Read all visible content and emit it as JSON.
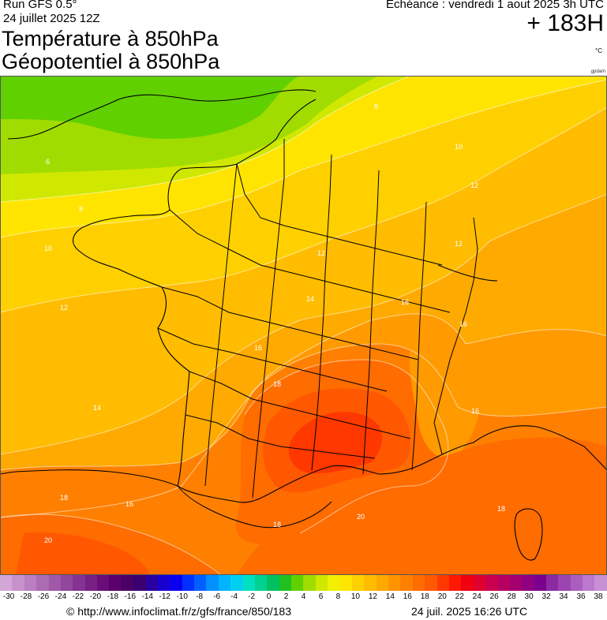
{
  "header": {
    "run": "Run GFS 0.5°",
    "run_date": "24 juillet 2025 12Z",
    "title_line1": "Température à 850hPa",
    "title_line2": "Géopotentiel à 850hPa",
    "valid": "Echéance : vendredi 1 aout 2025 3h UTC",
    "lead": "+ 183H",
    "unit": "°C",
    "credit_small": "gpdam"
  },
  "map": {
    "isotherm_labels": [
      {
        "id": "lbl-8-north",
        "text": "8"
      },
      {
        "id": "lbl-10-ne",
        "text": "10"
      },
      {
        "id": "lbl-12-ne",
        "text": "12"
      },
      {
        "id": "lbl-6-west",
        "text": "6"
      },
      {
        "id": "lbl-8-west",
        "text": "8"
      },
      {
        "id": "lbl-10-west",
        "text": "10"
      },
      {
        "id": "lbl-12-center",
        "text": "12"
      },
      {
        "id": "lbl-12-east",
        "text": "12"
      },
      {
        "id": "lbl-12-atlantic",
        "text": "12"
      },
      {
        "id": "lbl-14-center",
        "text": "14"
      },
      {
        "id": "lbl-16-east",
        "text": "16"
      },
      {
        "id": "lbl-16-alps",
        "text": "16"
      },
      {
        "id": "lbl-16-center",
        "text": "16"
      },
      {
        "id": "lbl-18-center",
        "text": "18"
      },
      {
        "id": "lbl-14-atlantic",
        "text": "14"
      },
      {
        "id": "lbl-16-alps-south",
        "text": "16"
      },
      {
        "id": "lbl-18-spain",
        "text": "18"
      },
      {
        "id": "lbl-16-pyrenees",
        "text": "16"
      },
      {
        "id": "lbl-18-south",
        "text": "18"
      },
      {
        "id": "lbl-20-med",
        "text": "20"
      },
      {
        "id": "lbl-18-corsica",
        "text": "18"
      },
      {
        "id": "lbl-20-spain",
        "text": "20"
      }
    ]
  },
  "colorbar": {
    "colors": [
      "#d4a6d8",
      "#c792cc",
      "#b97fc0",
      "#ac6cb4",
      "#9f59a8",
      "#92469c",
      "#853390",
      "#782084",
      "#6a0d78",
      "#5a006e",
      "#4a0066",
      "#3a0070",
      "#2a00a0",
      "#1a00d0",
      "#0a00f0",
      "#0030ff",
      "#0060ff",
      "#0090ff",
      "#00b4ff",
      "#00d0f0",
      "#00e0c0",
      "#00d090",
      "#00c060",
      "#20c020",
      "#60d000",
      "#a0dc00",
      "#d0e800",
      "#f0f000",
      "#ffe400",
      "#ffd000",
      "#ffbc00",
      "#ffa800",
      "#ff9400",
      "#ff8000",
      "#ff6c00",
      "#ff5800",
      "#ff3800",
      "#ff1800",
      "#f00010",
      "#e00030",
      "#cc0050",
      "#b80060",
      "#a40070",
      "#900080",
      "#7c0090",
      "#8c2aa0",
      "#9c44b0",
      "#ac5ec0",
      "#bc78cc",
      "#c890d4"
    ],
    "ticks": [
      "-30",
      "-28",
      "-26",
      "-24",
      "-22",
      "-20",
      "-18",
      "-16",
      "-14",
      "-12",
      "-10",
      "-8",
      "-6",
      "-4",
      "-2",
      "0",
      "2",
      "4",
      "6",
      "8",
      "10",
      "12",
      "14",
      "16",
      "18",
      "20",
      "22",
      "24",
      "26",
      "28",
      "30",
      "32",
      "34",
      "36",
      "38"
    ]
  },
  "footer": {
    "url": "© http://www.infoclimat.fr/z/gfs/france/850/183",
    "timestamp": "24 juil. 2025 16:26 UTC"
  }
}
